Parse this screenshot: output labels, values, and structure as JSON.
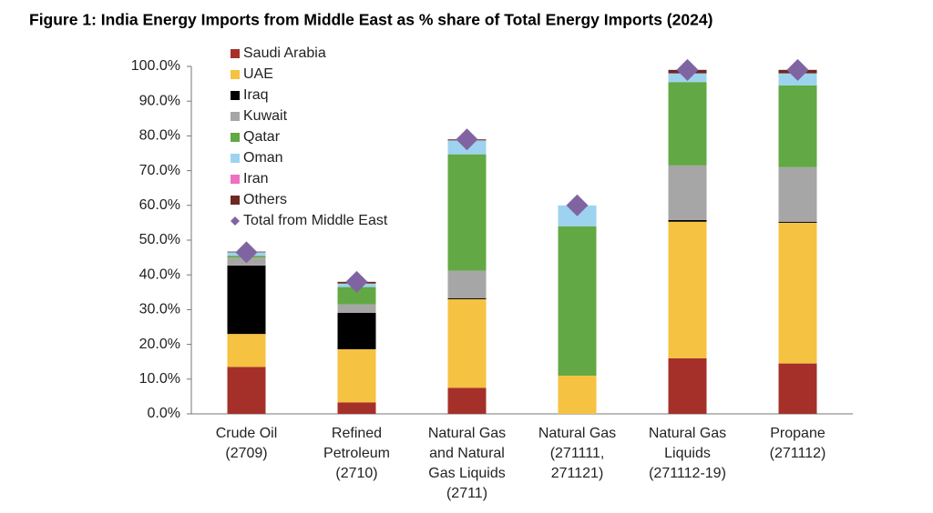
{
  "chart_data": {
    "type": "stacked-bar",
    "title": "Figure 1: India Energy Imports from Middle East as % share of Total Energy Imports (2024)",
    "categories": [
      [
        "Crude Oil",
        "(2709)"
      ],
      [
        "Refined",
        "Petroleum",
        "(2710)"
      ],
      [
        "Natural Gas",
        "and Natural",
        "Gas Liquids",
        "(2711)"
      ],
      [
        "Natural Gas",
        "(271111,",
        "271121)"
      ],
      [
        "Natural Gas",
        "Liquids",
        "(271112-19)"
      ],
      [
        "Propane",
        "(271112)"
      ]
    ],
    "series": [
      {
        "name": "Saudi Arabia",
        "color": "#a5302a",
        "values": [
          13.5,
          3.3,
          7.5,
          0,
          16,
          14.5
        ]
      },
      {
        "name": "UAE",
        "color": "#f5c242",
        "values": [
          9.5,
          15.3,
          25.5,
          11,
          39.3,
          40.5
        ]
      },
      {
        "name": "Iraq",
        "color": "#000000",
        "values": [
          19.7,
          10.5,
          0.3,
          0,
          0.5,
          0.3
        ]
      },
      {
        "name": "Kuwait",
        "color": "#a6a6a6",
        "values": [
          2.3,
          2.4,
          7.9,
          0,
          15.7,
          15.7
        ]
      },
      {
        "name": "Qatar",
        "color": "#62a844",
        "values": [
          0.5,
          5,
          33.5,
          43,
          24,
          23.5
        ]
      },
      {
        "name": "Oman",
        "color": "#9dd3ee",
        "values": [
          1,
          1,
          4,
          6,
          2.5,
          3.5
        ]
      },
      {
        "name": "Iran",
        "color": "#ef6fc1",
        "values": [
          0,
          0,
          0,
          0,
          0,
          0
        ]
      },
      {
        "name": "Others",
        "color": "#6b2a22",
        "values": [
          0.2,
          0.5,
          0.3,
          0,
          1,
          1
        ]
      }
    ],
    "total": {
      "name": "Total from Middle East",
      "color": "#8064a2",
      "values": [
        46.5,
        38,
        79,
        60,
        99,
        99
      ]
    },
    "ylim": [
      0,
      100
    ],
    "yticks": [
      {
        "value": 0,
        "label": "0.0%"
      },
      {
        "value": 10,
        "label": "10.0%"
      },
      {
        "value": 20,
        "label": "20.0%"
      },
      {
        "value": 30,
        "label": "30.0%"
      },
      {
        "value": 40,
        "label": "40.0%"
      },
      {
        "value": 50,
        "label": "50.0%"
      },
      {
        "value": 60,
        "label": "60.0%"
      },
      {
        "value": 70,
        "label": "70.0%"
      },
      {
        "value": 80,
        "label": "80.0%"
      },
      {
        "value": 90,
        "label": "90.0%"
      },
      {
        "value": 100,
        "label": "100.0%"
      }
    ]
  }
}
